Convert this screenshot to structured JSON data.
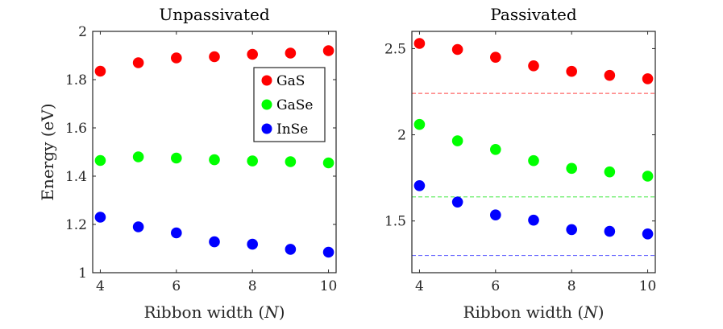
{
  "chart_data": [
    {
      "type": "scatter",
      "title": "Unpassivated",
      "xlabel_text": "Ribbon width (",
      "xlabel_var": "N",
      "xlabel_close": ")",
      "ylabel": "Energy (eV)",
      "xlim": [
        3.8,
        10.2
      ],
      "ylim": [
        1.0,
        2.0
      ],
      "xticks": [
        4,
        6,
        8,
        10
      ],
      "xtick_labels": [
        "4",
        "6",
        "8",
        "10"
      ],
      "yticks": [
        1.0,
        1.2,
        1.4,
        1.6,
        1.8,
        2.0
      ],
      "ytick_labels": [
        "1",
        "1.2",
        "1.4",
        "1.6",
        "1.8",
        "2"
      ],
      "legend_position": "top-right",
      "series": [
        {
          "name": "GaS",
          "color": "#ff0000",
          "x": [
            4,
            5,
            6,
            7,
            8,
            9,
            10
          ],
          "y": [
            1.835,
            1.87,
            1.89,
            1.895,
            1.905,
            1.91,
            1.92
          ]
        },
        {
          "name": "GaSe",
          "color": "#00ff00",
          "x": [
            4,
            5,
            6,
            7,
            8,
            9,
            10
          ],
          "y": [
            1.465,
            1.48,
            1.475,
            1.468,
            1.463,
            1.46,
            1.455
          ]
        },
        {
          "name": "InSe",
          "color": "#0000ff",
          "x": [
            4,
            5,
            6,
            7,
            8,
            9,
            10
          ],
          "y": [
            1.23,
            1.19,
            1.165,
            1.128,
            1.118,
            1.097,
            1.085
          ]
        }
      ]
    },
    {
      "type": "scatter",
      "title": "Passivated",
      "xlabel_text": "Ribbon width (",
      "xlabel_var": "N",
      "xlabel_close": ")",
      "ylabel": "",
      "xlim": [
        3.8,
        10.2
      ],
      "ylim": [
        1.2,
        2.6
      ],
      "xticks": [
        4,
        6,
        8,
        10
      ],
      "xtick_labels": [
        "4",
        "6",
        "8",
        "10"
      ],
      "yticks": [
        1.5,
        2.0,
        2.5
      ],
      "ytick_labels": [
        "1.5",
        "2",
        "2.5"
      ],
      "series": [
        {
          "name": "GaS",
          "color": "#ff0000",
          "x": [
            4,
            5,
            6,
            7,
            8,
            9,
            10
          ],
          "y": [
            2.53,
            2.495,
            2.45,
            2.4,
            2.368,
            2.345,
            2.325
          ]
        },
        {
          "name": "GaSe",
          "color": "#00ff00",
          "x": [
            4,
            5,
            6,
            7,
            8,
            9,
            10
          ],
          "y": [
            2.06,
            1.965,
            1.915,
            1.85,
            1.805,
            1.785,
            1.76
          ]
        },
        {
          "name": "InSe",
          "color": "#0000ff",
          "x": [
            4,
            5,
            6,
            7,
            8,
            9,
            10
          ],
          "y": [
            1.705,
            1.61,
            1.535,
            1.505,
            1.45,
            1.44,
            1.425
          ]
        }
      ],
      "reference_lines": [
        {
          "name": "GaS",
          "color": "#ff6666",
          "y": 2.24
        },
        {
          "name": "GaSe",
          "color": "#66ee66",
          "y": 1.64
        },
        {
          "name": "InSe",
          "color": "#6666ff",
          "y": 1.3
        }
      ]
    }
  ]
}
